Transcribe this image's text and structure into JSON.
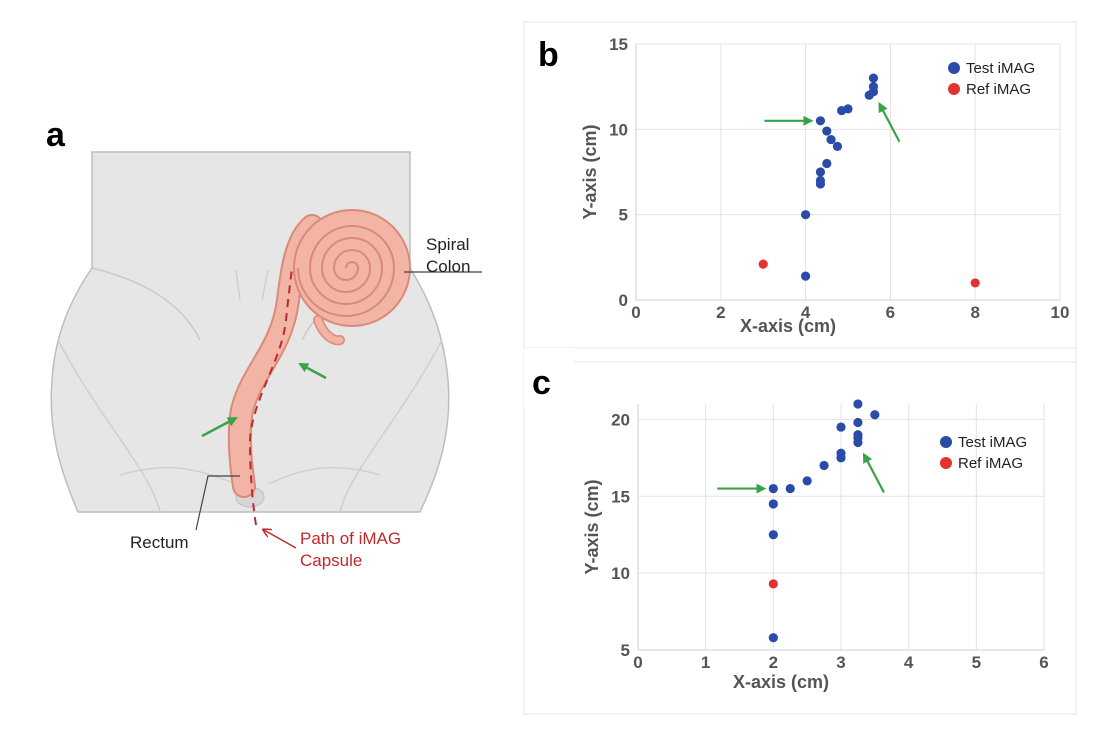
{
  "colors": {
    "test": "#2b4ba8",
    "ref": "#e2332f",
    "arrow": "#3aa34a",
    "path": "#c0292b",
    "colon": "#f2b4a4",
    "colon_stroke": "#d98a78",
    "body": "#e6e6e6",
    "body_stroke": "#bdbdbd"
  },
  "panel_a": {
    "letter": "a",
    "labels": {
      "spiral_line1": "Spiral",
      "spiral_line2": "Colon",
      "rectum": "Rectum",
      "path_line1": "Path of iMAG",
      "path_line2": "Capsule"
    },
    "icons": [
      "green-arrow-icon",
      "green-arrow-icon"
    ]
  },
  "chart_data": [
    {
      "type": "scatter",
      "panel": "b",
      "xlabel": "X-axis (cm)",
      "ylabel": "Y-axis (cm)",
      "xlim": [
        0,
        10
      ],
      "ylim": [
        0,
        15
      ],
      "xticks": [
        "0",
        "2",
        "4",
        "6",
        "8",
        "10"
      ],
      "yticks": [
        "0",
        "5",
        "10",
        "15"
      ],
      "grid": true,
      "legend_placement": "top-right",
      "series": [
        {
          "name": "Test iMAG",
          "points": [
            [
              4.0,
              1.4
            ],
            [
              4.0,
              5.0
            ],
            [
              4.35,
              6.8
            ],
            [
              4.35,
              7.0
            ],
            [
              4.35,
              7.5
            ],
            [
              4.5,
              8.0
            ],
            [
              4.75,
              9.0
            ],
            [
              4.6,
              9.4
            ],
            [
              4.5,
              9.9
            ],
            [
              4.35,
              10.5
            ],
            [
              4.85,
              11.1
            ],
            [
              5.0,
              11.2
            ],
            [
              5.5,
              12.0
            ],
            [
              5.6,
              12.2
            ],
            [
              5.6,
              12.5
            ],
            [
              5.6,
              13.0
            ]
          ]
        },
        {
          "name": "Ref iMAG",
          "points": [
            [
              3.0,
              2.1
            ],
            [
              8.0,
              1.0
            ]
          ]
        }
      ],
      "annotations": [
        {
          "type": "arrow",
          "points_to": [
            4.35,
            10.5
          ],
          "direction": "from-left"
        },
        {
          "type": "arrow",
          "points_to": [
            5.6,
            12.2
          ],
          "direction": "from-lower-right"
        }
      ]
    },
    {
      "type": "scatter",
      "panel": "c",
      "xlabel": "X-axis (cm)",
      "ylabel": "Y-axis (cm)",
      "xlim": [
        0,
        6
      ],
      "ylim": [
        5,
        21
      ],
      "xticks": [
        "0",
        "1",
        "2",
        "3",
        "4",
        "5",
        "6"
      ],
      "yticks": [
        "5",
        "10",
        "15",
        "20"
      ],
      "grid": true,
      "legend_placement": "top-right",
      "series": [
        {
          "name": "Test iMAG",
          "points": [
            [
              2.0,
              5.8
            ],
            [
              2.0,
              12.5
            ],
            [
              2.0,
              14.5
            ],
            [
              2.0,
              15.5
            ],
            [
              2.25,
              15.5
            ],
            [
              2.5,
              16.0
            ],
            [
              2.75,
              17.0
            ],
            [
              3.0,
              17.5
            ],
            [
              3.0,
              17.8
            ],
            [
              3.0,
              19.5
            ],
            [
              3.25,
              18.5
            ],
            [
              3.25,
              18.8
            ],
            [
              3.25,
              19.0
            ],
            [
              3.25,
              19.8
            ],
            [
              3.25,
              21.0
            ],
            [
              3.5,
              20.3
            ]
          ]
        },
        {
          "name": "Ref iMAG",
          "points": [
            [
              2.0,
              9.3
            ]
          ]
        }
      ],
      "annotations": [
        {
          "type": "arrow",
          "points_to": [
            2.0,
            15.5
          ],
          "direction": "from-left"
        },
        {
          "type": "arrow",
          "points_to": [
            3.25,
            18.5
          ],
          "direction": "from-lower-right"
        }
      ]
    }
  ]
}
